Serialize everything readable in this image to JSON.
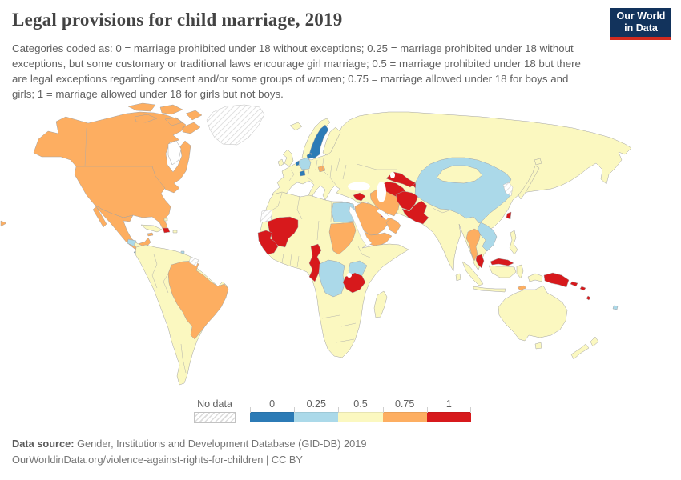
{
  "header": {
    "title": "Legal provisions for child marriage, 2019",
    "subtitle": "Categories coded as: 0 = marriage prohibited under 18 without exceptions; 0.25 = marriage prohibited under 18 without exceptions, but some customary or traditional laws encourage girl marriage; 0.5 = marriage prohibited under 18 but there are legal exceptions regarding consent and/or some groups of women; 0.75 = marriage allowed under 18 for boys and girls; 1 = marriage allowed under 18 for girls but not boys.",
    "logo": {
      "line1": "Our World",
      "line2": "in Data",
      "bg_color": "#12335c",
      "accent_color": "#d22b1f"
    }
  },
  "legend": {
    "no_data_label": "No data",
    "bins": [
      {
        "label": "0",
        "color": "#2c7bb6"
      },
      {
        "label": "0.25",
        "color": "#abd9e9"
      },
      {
        "label": "0.5",
        "color": "#fbf8c0"
      },
      {
        "label": "0.75",
        "color": "#fdae61"
      },
      {
        "label": "1",
        "color": "#d7191c"
      }
    ]
  },
  "footer": {
    "source_label": "Data source:",
    "source_text": " Gender, Institutions and Development Database (GID-DB) 2019",
    "url_text": "OurWorldinData.org/violence-against-rights-for-children | CC BY"
  },
  "chart_data": {
    "type": "choropleth",
    "title": "Legal provisions for child marriage, 2019",
    "year": 2019,
    "categories": [
      "0",
      "0.25",
      "0.5",
      "0.75",
      "1",
      "no-data"
    ],
    "palette": {
      "0": "#2c7bb6",
      "0.25": "#abd9e9",
      "0.5": "#fbf8c0",
      "0.75": "#fdae61",
      "1": "#d7191c",
      "no-data": "hatched"
    },
    "regions": {
      "greenland": "no-data",
      "canada": "0.75",
      "usa": "0.75",
      "mexico": "0.75",
      "guatemala": "0.25",
      "central-america": "0.5",
      "panama": "0",
      "cuba": "0.5",
      "bahamas": "0.5",
      "jamaica": "0.75",
      "hispaniola": "1",
      "puerto-rico": "0.5",
      "trinidad": "0.25",
      "south-america": "0.5",
      "brazil": "0.75",
      "suriname": "no-data",
      "iceland": "0.5",
      "uk": "0.5",
      "ireland": "0.5",
      "norway": "0.5",
      "sweden": "0",
      "finland": "0.5",
      "denmark": "0",
      "netherlands": "0",
      "germany": "0.25",
      "switzerland": "0",
      "hungary": "0.75",
      "eurasia": "0.5",
      "syria": "1",
      "iraq-jordan": "0.5",
      "saudi-arabia": "0.75",
      "yemen": "0.75",
      "oman": "0.75",
      "qatar": "1",
      "iran": "0.75",
      "turkmenistan": "1",
      "uzbekistan": "1",
      "tajikistan": "1",
      "afghanistan": "1",
      "pakistan": "1",
      "china": "0.25",
      "mongolia": "0.5",
      "korea": "no-data",
      "japan": "0.5",
      "taiwan": "1",
      "thailand": "0.75",
      "laos-vietnam-cambodia": "0.25",
      "malaysia": "1",
      "indonesia": "0.5",
      "timor-leste": "0.75",
      "philippines": "0.5",
      "papua-new-guinea": "1",
      "solomon-islands": "1",
      "vanuatu": "1",
      "fiji": "0.25",
      "australia": "0.5",
      "new-zealand": "0.5",
      "africa": "0.5",
      "western-sahara": "no-data",
      "mali": "1",
      "senegal-guinea": "1",
      "egypt": "0.25",
      "sudan": "0.75",
      "cameroon-gabon-congo": "1",
      "dr-congo": "0.25",
      "kenya": "0.25",
      "tanzania": "1",
      "madagascar": "0.5",
      "sri-lanka": "0.5"
    }
  }
}
